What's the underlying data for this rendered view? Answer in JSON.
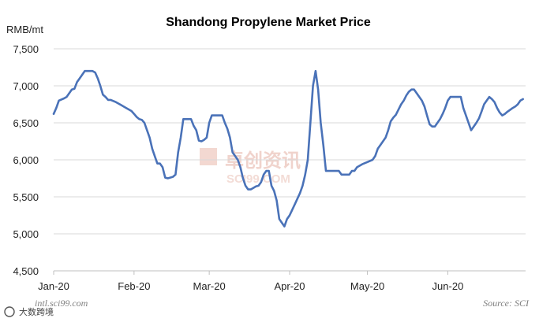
{
  "chart_data": {
    "type": "line",
    "title": "Shandong Propylene Market Price",
    "ylabel": "RMB/mt",
    "xlabel": "",
    "ylim": [
      4500,
      7500
    ],
    "yticks": [
      "7,500",
      "7,000",
      "6,500",
      "6,000",
      "5,500",
      "5,000",
      "4,500"
    ],
    "ytick_values": [
      7500,
      7000,
      6500,
      6000,
      5500,
      5000,
      4500
    ],
    "grid": true,
    "x_range": [
      0,
      182
    ],
    "x_ticks": [
      {
        "label": "Jan-20",
        "x": 0
      },
      {
        "label": "Feb-20",
        "x": 31
      },
      {
        "label": "Mar-20",
        "x": 60
      },
      {
        "label": "Apr-20",
        "x": 91
      },
      {
        "label": "May-20",
        "x": 121
      },
      {
        "label": "Jun-20",
        "x": 152
      }
    ],
    "series": [
      {
        "name": "Shandong Propylene",
        "color": "#4a72b8",
        "points": [
          [
            0,
            6620
          ],
          [
            1,
            6700
          ],
          [
            2,
            6800
          ],
          [
            4,
            6830
          ],
          [
            5,
            6850
          ],
          [
            7,
            6950
          ],
          [
            8,
            6960
          ],
          [
            9,
            7050
          ],
          [
            10,
            7100
          ],
          [
            12,
            7200
          ],
          [
            15,
            7200
          ],
          [
            16,
            7180
          ],
          [
            17,
            7100
          ],
          [
            18,
            7000
          ],
          [
            19,
            6880
          ],
          [
            20,
            6850
          ],
          [
            21,
            6810
          ],
          [
            22,
            6810
          ],
          [
            24,
            6780
          ],
          [
            26,
            6740
          ],
          [
            28,
            6700
          ],
          [
            30,
            6660
          ],
          [
            31,
            6620
          ],
          [
            32,
            6580
          ],
          [
            33,
            6550
          ],
          [
            34,
            6540
          ],
          [
            35,
            6500
          ],
          [
            36,
            6400
          ],
          [
            37,
            6300
          ],
          [
            38,
            6150
          ],
          [
            39,
            6050
          ],
          [
            40,
            5950
          ],
          [
            41,
            5950
          ],
          [
            42,
            5900
          ],
          [
            43,
            5760
          ],
          [
            44,
            5750
          ],
          [
            46,
            5770
          ],
          [
            47,
            5800
          ],
          [
            48,
            6100
          ],
          [
            49,
            6300
          ],
          [
            50,
            6550
          ],
          [
            53,
            6550
          ],
          [
            54,
            6460
          ],
          [
            55,
            6400
          ],
          [
            56,
            6260
          ],
          [
            57,
            6250
          ],
          [
            58,
            6270
          ],
          [
            59,
            6300
          ],
          [
            60,
            6500
          ],
          [
            61,
            6600
          ],
          [
            65,
            6600
          ],
          [
            66,
            6500
          ],
          [
            67,
            6420
          ],
          [
            68,
            6300
          ],
          [
            69,
            6100
          ],
          [
            70,
            6050
          ],
          [
            71,
            6000
          ],
          [
            72,
            5900
          ],
          [
            73,
            5750
          ],
          [
            74,
            5650
          ],
          [
            75,
            5600
          ],
          [
            76,
            5600
          ],
          [
            77,
            5620
          ],
          [
            78,
            5640
          ],
          [
            79,
            5650
          ],
          [
            80,
            5700
          ],
          [
            81,
            5800
          ],
          [
            82,
            5850
          ],
          [
            83,
            5850
          ],
          [
            84,
            5650
          ],
          [
            85,
            5580
          ],
          [
            86,
            5450
          ],
          [
            87,
            5200
          ],
          [
            88,
            5150
          ],
          [
            89,
            5100
          ],
          [
            90,
            5200
          ],
          [
            91,
            5250
          ],
          [
            93,
            5400
          ],
          [
            95,
            5550
          ],
          [
            96,
            5650
          ],
          [
            97,
            5800
          ],
          [
            98,
            6000
          ],
          [
            99,
            6500
          ],
          [
            100,
            7000
          ],
          [
            101,
            7200
          ],
          [
            102,
            6950
          ],
          [
            103,
            6500
          ],
          [
            104,
            6200
          ],
          [
            105,
            5850
          ],
          [
            108,
            5850
          ],
          [
            110,
            5850
          ],
          [
            111,
            5800
          ],
          [
            114,
            5800
          ],
          [
            115,
            5850
          ],
          [
            116,
            5850
          ],
          [
            117,
            5900
          ],
          [
            119,
            5940
          ],
          [
            121,
            5970
          ],
          [
            123,
            6000
          ],
          [
            124,
            6050
          ],
          [
            125,
            6150
          ],
          [
            126,
            6200
          ],
          [
            128,
            6300
          ],
          [
            129,
            6400
          ],
          [
            130,
            6520
          ],
          [
            131,
            6570
          ],
          [
            132,
            6610
          ],
          [
            133,
            6680
          ],
          [
            134,
            6750
          ],
          [
            135,
            6800
          ],
          [
            136,
            6870
          ],
          [
            137,
            6920
          ],
          [
            138,
            6950
          ],
          [
            139,
            6950
          ],
          [
            140,
            6900
          ],
          [
            141,
            6850
          ],
          [
            142,
            6800
          ],
          [
            143,
            6720
          ],
          [
            144,
            6600
          ],
          [
            145,
            6480
          ],
          [
            146,
            6450
          ],
          [
            147,
            6450
          ],
          [
            148,
            6500
          ],
          [
            149,
            6550
          ],
          [
            150,
            6620
          ],
          [
            151,
            6700
          ],
          [
            152,
            6800
          ],
          [
            153,
            6850
          ],
          [
            157,
            6850
          ],
          [
            158,
            6700
          ],
          [
            159,
            6600
          ],
          [
            160,
            6500
          ],
          [
            161,
            6400
          ],
          [
            162,
            6450
          ],
          [
            163,
            6500
          ],
          [
            164,
            6560
          ],
          [
            165,
            6650
          ],
          [
            166,
            6750
          ],
          [
            167,
            6800
          ],
          [
            168,
            6850
          ],
          [
            169,
            6820
          ],
          [
            170,
            6780
          ],
          [
            171,
            6700
          ],
          [
            172,
            6640
          ],
          [
            173,
            6600
          ],
          [
            174,
            6620
          ],
          [
            175,
            6650
          ],
          [
            177,
            6700
          ],
          [
            178,
            6720
          ],
          [
            179,
            6750
          ],
          [
            180,
            6800
          ],
          [
            181,
            6820
          ]
        ]
      }
    ]
  },
  "footer": {
    "left": "intl.sci99.com",
    "right": "Source: SCI"
  },
  "watermark": {
    "cn": "卓创资讯",
    "en": "SCI99.COM"
  },
  "badge": {
    "text": "大数跨境"
  }
}
